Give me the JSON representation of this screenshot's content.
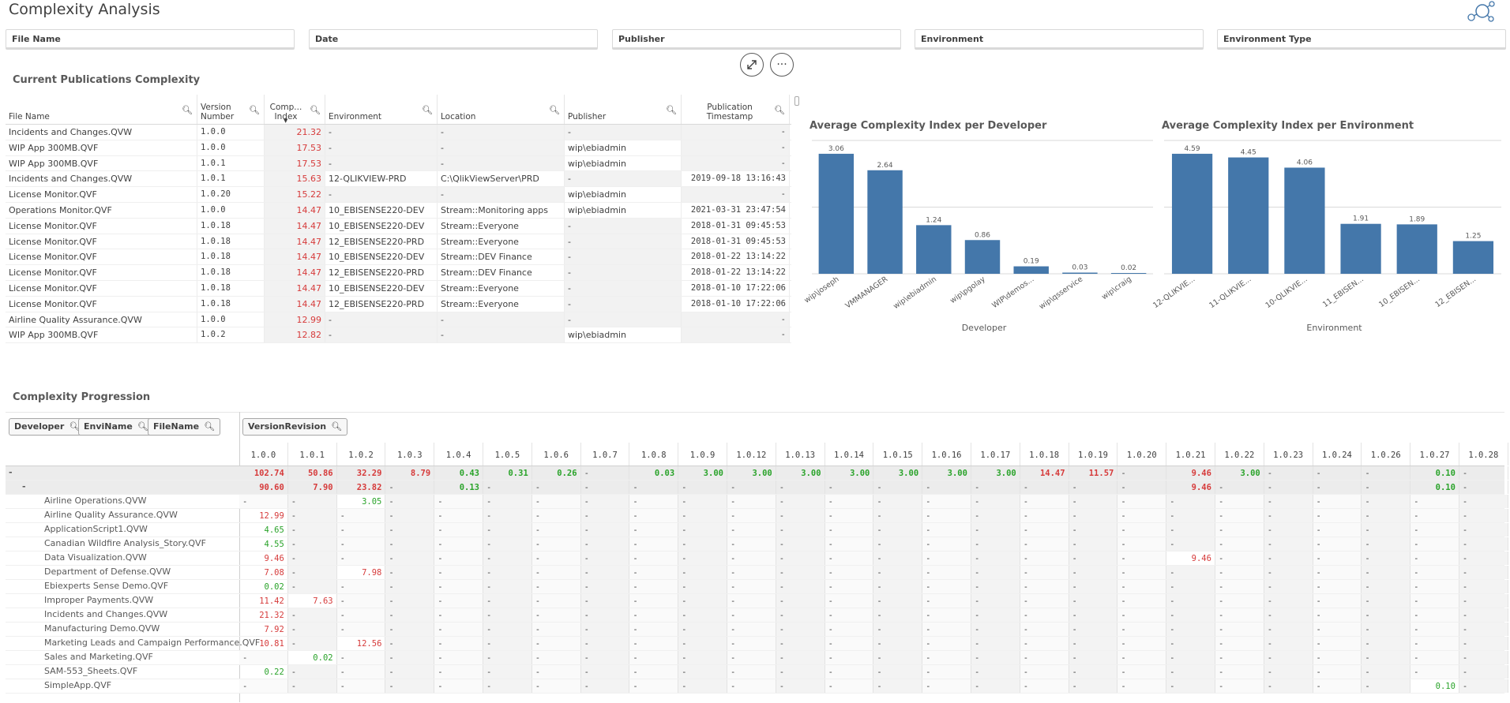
{
  "title": "Complexity Analysis",
  "filters": [
    "File Name",
    "Date",
    "Publisher",
    "Environment",
    "Environment Type"
  ],
  "toolbar": {
    "expand_icon": "expand-icon",
    "more_label": "···"
  },
  "publications": {
    "title": "Current Publications Complexity",
    "columns": [
      "File Name",
      "Version Number",
      "Comp... Index",
      "Environment",
      "Location",
      "Publisher",
      "Publication Timestamp"
    ],
    "rows": [
      [
        "Incidents and Changes.QVW",
        "1.0.0",
        "21.32",
        "-",
        "-",
        "-",
        "-"
      ],
      [
        "WIP App 300MB.QVF",
        "1.0.0",
        "17.53",
        "-",
        "-",
        "wip\\ebiadmin",
        "-"
      ],
      [
        "WIP App 300MB.QVF",
        "1.0.1",
        "17.53",
        "-",
        "-",
        "wip\\ebiadmin",
        "-"
      ],
      [
        "Incidents and Changes.QVW",
        "1.0.1",
        "15.63",
        "12-QLIKVIEW-PRD",
        "C:\\QlikViewServer\\PRD",
        "-",
        "2019-09-18 13:16:43"
      ],
      [
        "License Monitor.QVF",
        "1.0.20",
        "15.22",
        "-",
        "-",
        "wip\\ebiadmin",
        "-"
      ],
      [
        "Operations Monitor.QVF",
        "1.0.0",
        "14.47",
        "10_EBISENSE220-DEV",
        "Stream::Monitoring apps",
        "wip\\ebiadmin",
        "2021-03-31 23:47:54"
      ],
      [
        "License Monitor.QVF",
        "1.0.18",
        "14.47",
        "10_EBISENSE220-DEV",
        "Stream::Everyone",
        "-",
        "2018-01-31 09:45:53"
      ],
      [
        "License Monitor.QVF",
        "1.0.18",
        "14.47",
        "12_EBISENSE220-PRD",
        "Stream::Everyone",
        "-",
        "2018-01-31 09:45:53"
      ],
      [
        "License Monitor.QVF",
        "1.0.18",
        "14.47",
        "10_EBISENSE220-DEV",
        "Stream::DEV Finance",
        "-",
        "2018-01-22 13:14:22"
      ],
      [
        "License Monitor.QVF",
        "1.0.18",
        "14.47",
        "12_EBISENSE220-PRD",
        "Stream::DEV Finance",
        "-",
        "2018-01-22 13:14:22"
      ],
      [
        "License Monitor.QVF",
        "1.0.18",
        "14.47",
        "10_EBISENSE220-DEV",
        "Stream::Everyone",
        "-",
        "2018-01-10 17:22:06"
      ],
      [
        "License Monitor.QVF",
        "1.0.18",
        "14.47",
        "12_EBISENSE220-PRD",
        "Stream::Everyone",
        "-",
        "2018-01-10 17:22:06"
      ],
      [
        "Airline Quality Assurance.QVW",
        "1.0.0",
        "12.99",
        "-",
        "-",
        "-",
        "-"
      ],
      [
        "WIP App 300MB.QVF",
        "1.0.2",
        "12.82",
        "-",
        "-",
        "wip\\ebiadmin",
        "-"
      ]
    ]
  },
  "chart_data": [
    {
      "type": "bar",
      "title": "Average Complexity Index per Developer",
      "xlabel": "Developer",
      "ylabel": "",
      "categories": [
        "wip\\joseph",
        "VMMANAGER",
        "wip\\ebiadmin",
        "wip\\pgolay",
        "WIP\\demos...",
        "wip\\qsservice",
        "wip\\craig"
      ],
      "values": [
        3.06,
        2.64,
        1.24,
        0.86,
        0.19,
        0.03,
        0.02
      ],
      "ylim": [
        0,
        3.4
      ],
      "grid": true,
      "color": "#4477aa"
    },
    {
      "type": "bar",
      "title": "Average Complexity Index per Environment",
      "xlabel": "Environment",
      "ylabel": "",
      "categories": [
        "12-QLIKVIE...",
        "11-QLIKVIE...",
        "10-QLIKVIE...",
        "11_EBISEN...",
        "10_EBISEN...",
        "12_EBISEN..."
      ],
      "values": [
        4.59,
        4.45,
        4.06,
        1.91,
        1.89,
        1.25
      ],
      "ylim": [
        0,
        5.1
      ],
      "grid": true,
      "color": "#4477aa"
    }
  ],
  "progression": {
    "title": "Complexity Progression",
    "row_dimensions": [
      "Developer",
      "EnviName",
      "FileName"
    ],
    "column_dimension": "VersionRevision",
    "versions": [
      "1.0.0",
      "1.0.1",
      "1.0.2",
      "1.0.3",
      "1.0.4",
      "1.0.5",
      "1.0.6",
      "1.0.7",
      "1.0.8",
      "1.0.9",
      "1.0.12",
      "1.0.13",
      "1.0.14",
      "1.0.15",
      "1.0.16",
      "1.0.17",
      "1.0.18",
      "1.0.19",
      "1.0.20",
      "1.0.21",
      "1.0.22",
      "1.0.23",
      "1.0.24",
      "1.0.26",
      "1.0.27",
      "1.0.28"
    ],
    "rows": [
      {
        "label": "-",
        "indent": 0,
        "bold": true,
        "values": [
          "102.74",
          "50.86",
          "32.29",
          "8.79",
          "0.43",
          "0.31",
          "0.26",
          "-",
          "0.03",
          "3.00",
          "3.00",
          "3.00",
          "3.00",
          "3.00",
          "3.00",
          "3.00",
          "14.47",
          "11.57",
          "-",
          "9.46",
          "3.00",
          "-",
          "-",
          "-",
          "0.10",
          "-"
        ]
      },
      {
        "label": "-",
        "indent": 1,
        "bold": true,
        "values": [
          "90.60",
          "7.90",
          "23.82",
          "-",
          "0.13",
          "-",
          "-",
          "-",
          "-",
          "-",
          "-",
          "-",
          "-",
          "-",
          "-",
          "-",
          "-",
          "-",
          "-",
          "9.46",
          "-",
          "-",
          "-",
          "-",
          "0.10",
          "-"
        ]
      },
      {
        "label": "Airline Operations.QVW",
        "indent": 2,
        "values": [
          "-",
          "-",
          "3.05",
          "-",
          "-",
          "-",
          "-",
          "-",
          "-",
          "-",
          "-",
          "-",
          "-",
          "-",
          "-",
          "-",
          "-",
          "-",
          "-",
          "-",
          "-",
          "-",
          "-",
          "-",
          "-",
          "-"
        ]
      },
      {
        "label": "Airline Quality Assurance.QVW",
        "indent": 2,
        "values": [
          "12.99",
          "-",
          "-",
          "-",
          "-",
          "-",
          "-",
          "-",
          "-",
          "-",
          "-",
          "-",
          "-",
          "-",
          "-",
          "-",
          "-",
          "-",
          "-",
          "-",
          "-",
          "-",
          "-",
          "-",
          "-",
          "-"
        ]
      },
      {
        "label": "ApplicationScript1.QVW",
        "indent": 2,
        "values": [
          "4.65",
          "-",
          "-",
          "-",
          "-",
          "-",
          "-",
          "-",
          "-",
          "-",
          "-",
          "-",
          "-",
          "-",
          "-",
          "-",
          "-",
          "-",
          "-",
          "-",
          "-",
          "-",
          "-",
          "-",
          "-",
          "-"
        ]
      },
      {
        "label": "Canadian Wildfire Analysis_Story.QVF",
        "indent": 2,
        "values": [
          "4.55",
          "-",
          "-",
          "-",
          "-",
          "-",
          "-",
          "-",
          "-",
          "-",
          "-",
          "-",
          "-",
          "-",
          "-",
          "-",
          "-",
          "-",
          "-",
          "-",
          "-",
          "-",
          "-",
          "-",
          "-",
          "-"
        ]
      },
      {
        "label": "Data Visualization.QVW",
        "indent": 2,
        "values": [
          "9.46",
          "-",
          "-",
          "-",
          "-",
          "-",
          "-",
          "-",
          "-",
          "-",
          "-",
          "-",
          "-",
          "-",
          "-",
          "-",
          "-",
          "-",
          "-",
          "9.46",
          "-",
          "-",
          "-",
          "-",
          "-",
          "-"
        ]
      },
      {
        "label": "Department of Defense.QVW",
        "indent": 2,
        "values": [
          "7.08",
          "-",
          "7.98",
          "-",
          "-",
          "-",
          "-",
          "-",
          "-",
          "-",
          "-",
          "-",
          "-",
          "-",
          "-",
          "-",
          "-",
          "-",
          "-",
          "-",
          "-",
          "-",
          "-",
          "-",
          "-",
          "-"
        ]
      },
      {
        "label": "Ebiexperts Sense Demo.QVF",
        "indent": 2,
        "values": [
          "0.02",
          "-",
          "-",
          "-",
          "-",
          "-",
          "-",
          "-",
          "-",
          "-",
          "-",
          "-",
          "-",
          "-",
          "-",
          "-",
          "-",
          "-",
          "-",
          "-",
          "-",
          "-",
          "-",
          "-",
          "-",
          "-"
        ]
      },
      {
        "label": "Improper Payments.QVW",
        "indent": 2,
        "values": [
          "11.42",
          "7.63",
          "-",
          "-",
          "-",
          "-",
          "-",
          "-",
          "-",
          "-",
          "-",
          "-",
          "-",
          "-",
          "-",
          "-",
          "-",
          "-",
          "-",
          "-",
          "-",
          "-",
          "-",
          "-",
          "-",
          "-"
        ]
      },
      {
        "label": "Incidents and Changes.QVW",
        "indent": 2,
        "values": [
          "21.32",
          "-",
          "-",
          "-",
          "-",
          "-",
          "-",
          "-",
          "-",
          "-",
          "-",
          "-",
          "-",
          "-",
          "-",
          "-",
          "-",
          "-",
          "-",
          "-",
          "-",
          "-",
          "-",
          "-",
          "-",
          "-"
        ]
      },
      {
        "label": "Manufacturing Demo.QVW",
        "indent": 2,
        "values": [
          "7.92",
          "-",
          "-",
          "-",
          "-",
          "-",
          "-",
          "-",
          "-",
          "-",
          "-",
          "-",
          "-",
          "-",
          "-",
          "-",
          "-",
          "-",
          "-",
          "-",
          "-",
          "-",
          "-",
          "-",
          "-",
          "-"
        ]
      },
      {
        "label": "Marketing Leads and Campaign Performance.QVF",
        "indent": 2,
        "values": [
          "10.81",
          "-",
          "12.56",
          "-",
          "-",
          "-",
          "-",
          "-",
          "-",
          "-",
          "-",
          "-",
          "-",
          "-",
          "-",
          "-",
          "-",
          "-",
          "-",
          "-",
          "-",
          "-",
          "-",
          "-",
          "-",
          "-"
        ]
      },
      {
        "label": "Sales and Marketing.QVF",
        "indent": 2,
        "values": [
          "-",
          "0.02",
          "-",
          "-",
          "-",
          "-",
          "-",
          "-",
          "-",
          "-",
          "-",
          "-",
          "-",
          "-",
          "-",
          "-",
          "-",
          "-",
          "-",
          "-",
          "-",
          "-",
          "-",
          "-",
          "-",
          "-"
        ]
      },
      {
        "label": "SAM-553_Sheets.QVF",
        "indent": 2,
        "values": [
          "0.22",
          "-",
          "-",
          "-",
          "-",
          "-",
          "-",
          "-",
          "-",
          "-",
          "-",
          "-",
          "-",
          "-",
          "-",
          "-",
          "-",
          "-",
          "-",
          "-",
          "-",
          "-",
          "-",
          "-",
          "-",
          "-"
        ]
      },
      {
        "label": "SimpleApp.QVF",
        "indent": 2,
        "values": [
          "-",
          "-",
          "-",
          "-",
          "-",
          "-",
          "-",
          "-",
          "-",
          "-",
          "-",
          "-",
          "-",
          "-",
          "-",
          "-",
          "-",
          "-",
          "-",
          "-",
          "-",
          "-",
          "-",
          "-",
          "0.10",
          "-"
        ]
      }
    ]
  }
}
